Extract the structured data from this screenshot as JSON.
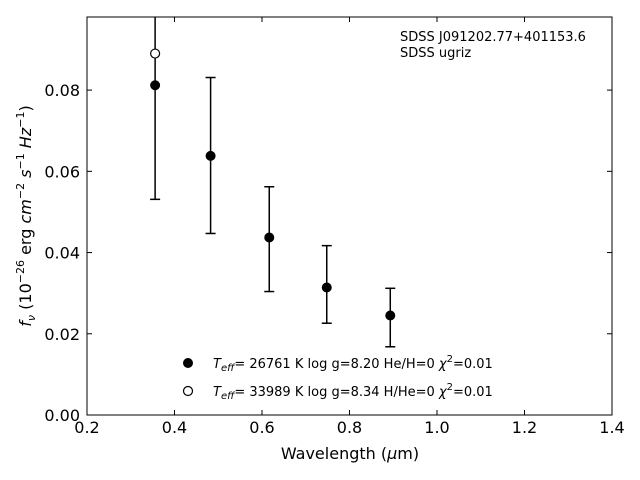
{
  "chart_data": {
    "type": "scatter",
    "xlabel_pre": "Wavelength (",
    "xlabel_mu": "μ",
    "xlabel_post": "m)",
    "ylabel": {
      "f": "f",
      "sub": "ν",
      "pre": " (10",
      "exp1": "−26",
      "mid": " erg ",
      "cm": "cm",
      "exp2": "−2",
      "s": " s",
      "exp3": "−1",
      "hz": " Hz",
      "exp4": "−1",
      "close": ")"
    },
    "xlim": [
      0.2,
      1.4
    ],
    "ylim": [
      0.0,
      0.098
    ],
    "x_ticks": [
      "0.2",
      "0.4",
      "0.6",
      "0.8",
      "1.0",
      "1.2",
      "1.4"
    ],
    "y_ticks": [
      "0.00",
      "0.02",
      "0.04",
      "0.06",
      "0.08"
    ],
    "annotation": [
      "SDSS J091202.77+401153.6",
      "SDSS ugriz"
    ],
    "series": [
      {
        "marker": "filled",
        "legend": {
          "t": "T",
          "sub": "eff",
          "text": "= 26761 K  log g=8.20  He/H=0  ",
          "chi": "χ",
          "sup": "2",
          "tail": "=0.01"
        },
        "points": [
          {
            "x": 0.3557,
            "y": 0.0812
          },
          {
            "x": 0.4825,
            "y": 0.0638
          },
          {
            "x": 0.6166,
            "y": 0.0437
          },
          {
            "x": 0.748,
            "y": 0.0314
          },
          {
            "x": 0.8932,
            "y": 0.0245
          }
        ]
      },
      {
        "marker": "open",
        "legend": {
          "t": "T",
          "sub": "eff",
          "text": "= 33989 K  log g=8.34  H/He=0  ",
          "chi": "χ",
          "sup": "2",
          "tail": "=0.01"
        },
        "points": [
          {
            "x": 0.3557,
            "y": 0.089
          }
        ]
      }
    ],
    "observed": {
      "points": [
        {
          "x": 0.3557,
          "y": 0.0812,
          "ylo": 0.0531,
          "yhi": 0.1095
        },
        {
          "x": 0.4825,
          "y": 0.0638,
          "ylo": 0.0447,
          "yhi": 0.0831
        },
        {
          "x": 0.6166,
          "y": 0.0437,
          "ylo": 0.0304,
          "yhi": 0.0562
        },
        {
          "x": 0.748,
          "y": 0.0314,
          "ylo": 0.0226,
          "yhi": 0.0417
        },
        {
          "x": 0.8932,
          "y": 0.0245,
          "ylo": 0.0168,
          "yhi": 0.0312
        }
      ]
    }
  }
}
